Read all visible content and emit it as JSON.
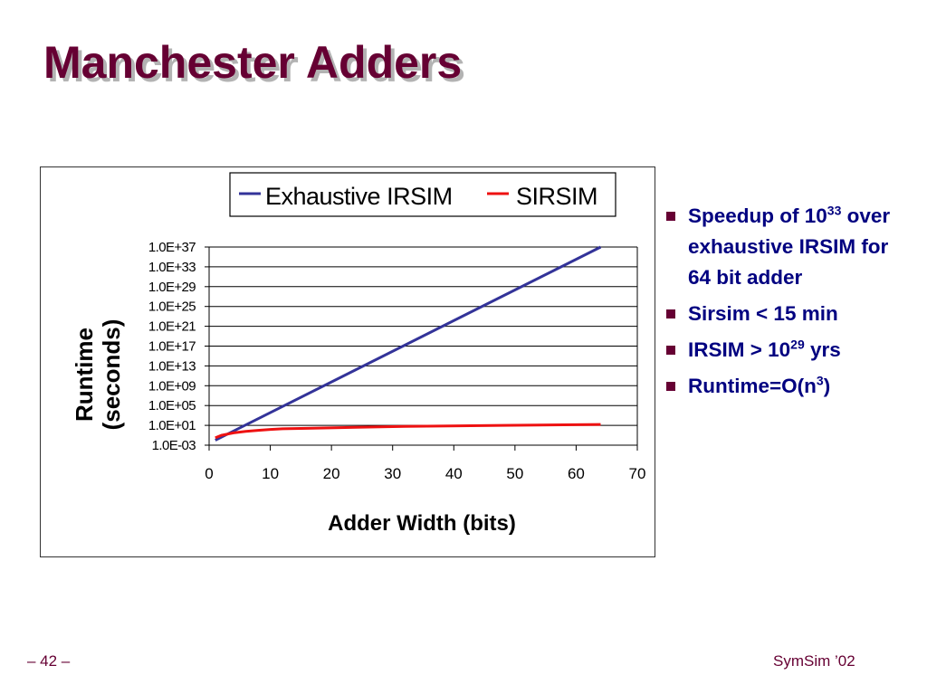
{
  "slide": {
    "title": "Manchester Adders",
    "footer_left": "– 42 –",
    "footer_right": "SymSim ’02"
  },
  "bullets": [
    {
      "pre": "Speedup of 10",
      "sup": "33",
      "post": " over exhaustive IRSIM for 64 bit adder"
    },
    {
      "pre": "Sirsim < 15 min",
      "sup": "",
      "post": ""
    },
    {
      "pre": "IRSIM > 10",
      "sup": "29",
      "post": " yrs"
    },
    {
      "pre": "Runtime=O(n",
      "sup": "3",
      "post": ")"
    }
  ],
  "colors": {
    "title": "#660033",
    "bullet_text": "#000080",
    "bullet_square": "#660033",
    "exhaustive_irsim": "#333399",
    "sirsim": "#ee1111"
  },
  "chart_data": {
    "type": "line",
    "xlabel": "Adder Width (bits)",
    "ylabel": "Runtime (seconds)",
    "ylabel_lines": [
      "Runtime",
      "(seconds)"
    ],
    "xlim": [
      0,
      70
    ],
    "x_ticks": [
      0,
      10,
      20,
      30,
      40,
      50,
      60,
      70
    ],
    "y_scale": "log",
    "ylim_exponent": [
      -3,
      37
    ],
    "y_tick_labels": [
      "1.0E+37",
      "1.0E+33",
      "1.0E+29",
      "1.0E+25",
      "1.0E+21",
      "1.0E+17",
      "1.0E+13",
      "1.0E+09",
      "1.0E+05",
      "1.0E+01",
      "1.0E-03"
    ],
    "y_tick_exponents": [
      37,
      33,
      29,
      25,
      21,
      17,
      13,
      9,
      5,
      1,
      -3
    ],
    "grid": true,
    "legend_position": "top",
    "series": [
      {
        "name": "Exhaustive IRSIM",
        "color": "#333399",
        "x": [
          1,
          64
        ],
        "y": [
          0.01,
          1e+37
        ]
      },
      {
        "name": "SIRSIM",
        "color": "#ee1111",
        "x": [
          1,
          2,
          4,
          6,
          8,
          10,
          12,
          16,
          24,
          32,
          48,
          64
        ],
        "y": [
          0.03,
          0.1,
          0.3,
          0.6,
          1.0,
          1.5,
          2.0,
          2.5,
          4.0,
          6.0,
          10.0,
          15.0
        ]
      }
    ]
  }
}
